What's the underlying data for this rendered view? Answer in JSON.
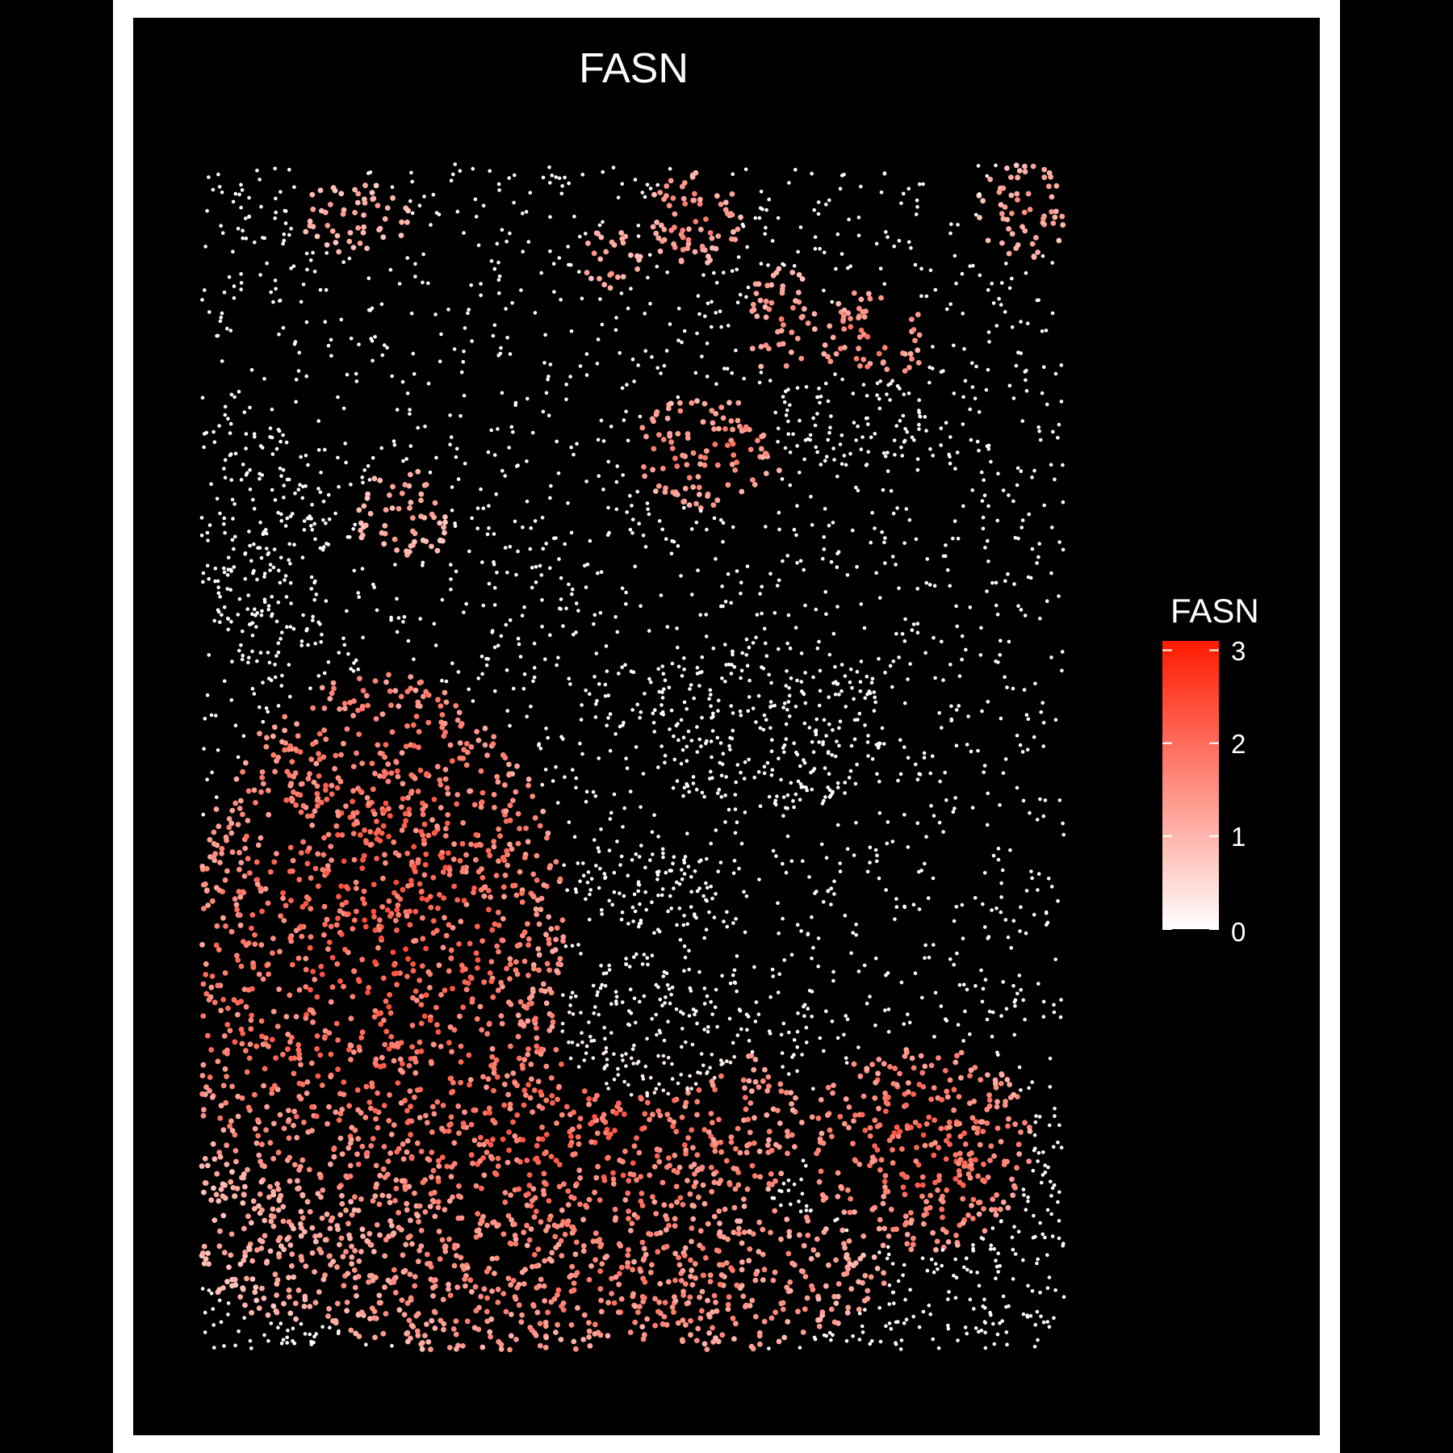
{
  "chart_data": {
    "type": "scatter",
    "title": "FASN",
    "xlabel": "",
    "ylabel": "",
    "axes_visible": false,
    "background": "#000000",
    "panel_border": "#ffffff",
    "color_scale": {
      "label": "FASN",
      "low_color": "#ffffff",
      "high_color": "#ff1a00",
      "range": [
        0,
        3.1
      ],
      "ticks": [
        0,
        1,
        2,
        3
      ],
      "tick_labels": [
        "0",
        "1",
        "2",
        "3"
      ]
    },
    "legend_position": "right",
    "point_size": "small"
  }
}
